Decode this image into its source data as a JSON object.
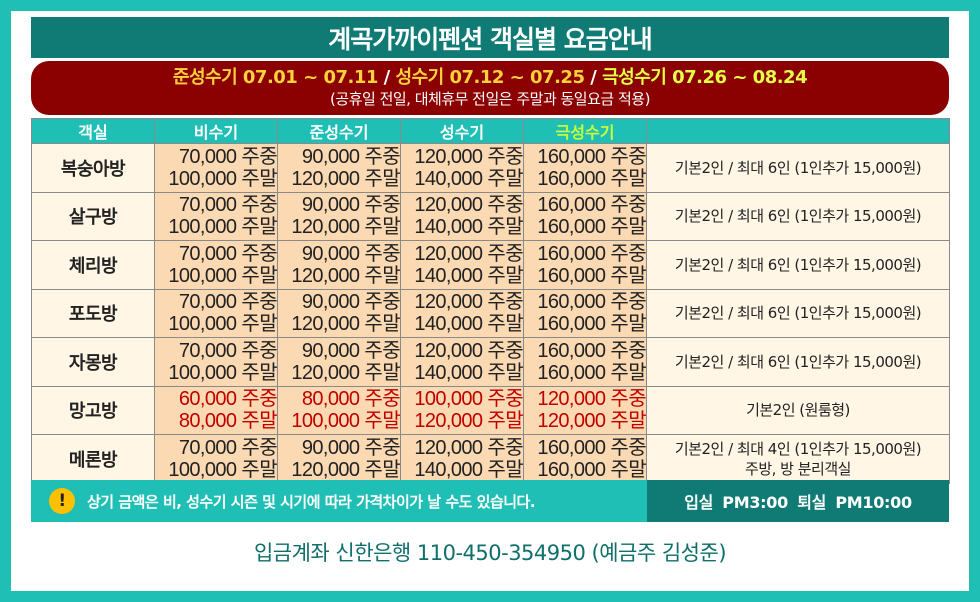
{
  "title": "계곡가까이펜션 객실별 요금안내",
  "seasons": {
    "semi": "준성수기 07.01 ~ 07.11",
    "peak": "성수기 07.12 ~ 07.25",
    "extreme": "극성수기 07.26 ~ 08.24",
    "separator": "/",
    "note": "(공휴일 전일, 대체휴무 전일은 주말과 동일요금 적용)"
  },
  "headers": {
    "room": "객실",
    "off": "비수기",
    "semi": "준성수기",
    "peak": "성수기",
    "extreme": "극성수기",
    "info": ""
  },
  "rooms": [
    {
      "name": "복숭아방",
      "off": [
        "70,000 주중",
        "100,000 주말"
      ],
      "semi": [
        "90,000 주중",
        "120,000 주말"
      ],
      "peak": [
        "120,000 주중",
        "140,000 주말"
      ],
      "extreme": [
        "160,000 주중",
        "160,000 주말"
      ],
      "info": [
        "기본2인 / 최대 6인 (1인추가 15,000원)"
      ]
    },
    {
      "name": "살구방",
      "off": [
        "70,000 주중",
        "100,000 주말"
      ],
      "semi": [
        "90,000 주중",
        "120,000 주말"
      ],
      "peak": [
        "120,000 주중",
        "140,000 주말"
      ],
      "extreme": [
        "160,000 주중",
        "160,000 주말"
      ],
      "info": [
        "기본2인 / 최대 6인 (1인추가 15,000원)"
      ]
    },
    {
      "name": "체리방",
      "off": [
        "70,000 주중",
        "100,000 주말"
      ],
      "semi": [
        "90,000 주중",
        "120,000 주말"
      ],
      "peak": [
        "120,000 주중",
        "140,000 주말"
      ],
      "extreme": [
        "160,000 주중",
        "160,000 주말"
      ],
      "info": [
        "기본2인 / 최대 6인 (1인추가 15,000원)"
      ]
    },
    {
      "name": "포도방",
      "off": [
        "70,000 주중",
        "100,000 주말"
      ],
      "semi": [
        "90,000 주중",
        "120,000 주말"
      ],
      "peak": [
        "120,000 주중",
        "140,000 주말"
      ],
      "extreme": [
        "160,000 주중",
        "160,000 주말"
      ],
      "info": [
        "기본2인 / 최대 6인 (1인추가 15,000원)"
      ]
    },
    {
      "name": "자몽방",
      "off": [
        "70,000 주중",
        "100,000 주말"
      ],
      "semi": [
        "90,000 주중",
        "120,000 주말"
      ],
      "peak": [
        "120,000 주중",
        "140,000 주말"
      ],
      "extreme": [
        "160,000 주중",
        "160,000 주말"
      ],
      "info": [
        "기본2인 / 최대 6인 (1인추가 15,000원)"
      ]
    },
    {
      "name": "망고방",
      "off": [
        "60,000 주중",
        "80,000 주말"
      ],
      "semi": [
        "80,000 주중",
        "100,000 주말"
      ],
      "peak": [
        "100,000 주중",
        "120,000 주말"
      ],
      "extreme": [
        "120,000 주중",
        "120,000 주말"
      ],
      "info": [
        "기본2인 (원룸형)"
      ]
    },
    {
      "name": "메론방",
      "off": [
        "70,000 주중",
        "100,000 주말"
      ],
      "semi": [
        "90,000 주중",
        "120,000 주말"
      ],
      "peak": [
        "120,000 주중",
        "140,000 주말"
      ],
      "extreme": [
        "160,000 주중",
        "160,000 주말"
      ],
      "info": [
        "기본2인 / 최대 4인 (1인추가 15,000원)",
        "주방, 방 분리객실"
      ]
    }
  ],
  "notice": {
    "icon": "!",
    "text": "상기 금액은 비, 성수기 시즌 및 시기에 따라 가격차이가 날 수도 있습니다."
  },
  "checkin_out": "입실 PM3:00   퇴실 PM10:00",
  "bank": "입금계좌 신한은행 110-450-354950 (예금주 김성준)",
  "colors": {
    "frame": "#1fbfb6",
    "title_bg": "#0f7b74",
    "season_bg": "#8b0000",
    "price_bg": "#fbd9b2",
    "highlight_price": "#c00000"
  }
}
